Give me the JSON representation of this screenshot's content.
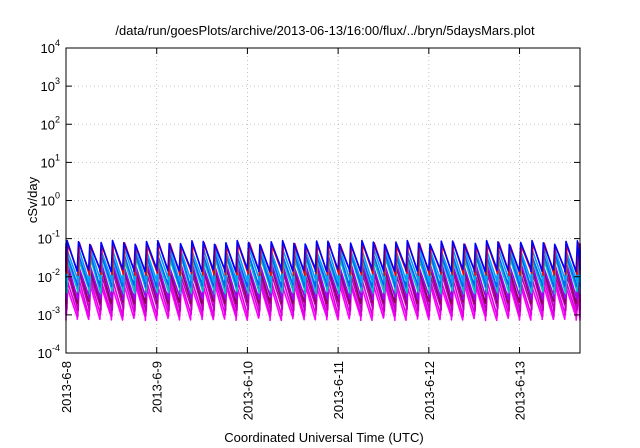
{
  "chart_data": {
    "type": "line",
    "title": "/data/run/goesPlots/archive/2013-06-13/16:00/flux/../bryn/5daysMars.plot",
    "xlabel": "Coordinated Universal Time (UTC)",
    "ylabel": "cSv/day",
    "y_scale": "log",
    "ylim": [
      0.0001,
      10000
    ],
    "xlim": [
      "2013-06-08 00:00",
      "2013-06-13 16:00"
    ],
    "grid": true,
    "y_ticks": [
      {
        "mant": "10",
        "exp": "-4",
        "value": 0.0001
      },
      {
        "mant": "10",
        "exp": "-3",
        "value": 0.001
      },
      {
        "mant": "10",
        "exp": "-2",
        "value": 0.01
      },
      {
        "mant": "10",
        "exp": "-1",
        "value": 0.1
      },
      {
        "mant": "10",
        "exp": "0",
        "value": 1
      },
      {
        "mant": "10",
        "exp": "1",
        "value": 10
      },
      {
        "mant": "10",
        "exp": "2",
        "value": 100
      },
      {
        "mant": "10",
        "exp": "3",
        "value": 1000
      },
      {
        "mant": "10",
        "exp": "4",
        "value": 10000
      }
    ],
    "x_ticks": [
      {
        "label": "2013-6-8",
        "date": "2013-06-08"
      },
      {
        "label": "2013-6-9",
        "date": "2013-06-09"
      },
      {
        "label": "2013-6-10",
        "date": "2013-06-10"
      },
      {
        "label": "2013-6-11",
        "date": "2013-06-11"
      },
      {
        "label": "2013-6-12",
        "date": "2013-06-12"
      },
      {
        "label": "2013-6-13",
        "date": "2013-06-13"
      }
    ],
    "cycle_hours": 3.0,
    "series": [
      {
        "color": "#ff00ff",
        "peak": 0.006,
        "trough": 0.0008
      },
      {
        "color": "#e000e0",
        "peak": 0.008,
        "trough": 0.001
      },
      {
        "color": "#c000c0",
        "peak": 0.011,
        "trough": 0.0014
      },
      {
        "color": "#8b0050",
        "peak": 0.018,
        "trough": 0.0022
      },
      {
        "color": "#a000ff",
        "peak": 0.02,
        "trough": 0.0028
      },
      {
        "color": "#00c0c0",
        "peak": 0.028,
        "trough": 0.004
      },
      {
        "color": "#0060ff",
        "peak": 0.04,
        "trough": 0.006
      },
      {
        "color": "#00a0ff",
        "peak": 0.05,
        "trough": 0.008
      },
      {
        "color": "#ff0000",
        "peak": 0.07,
        "trough": 0.012
      },
      {
        "color": "#0000ff",
        "peak": 0.08,
        "trough": 0.015
      }
    ]
  }
}
